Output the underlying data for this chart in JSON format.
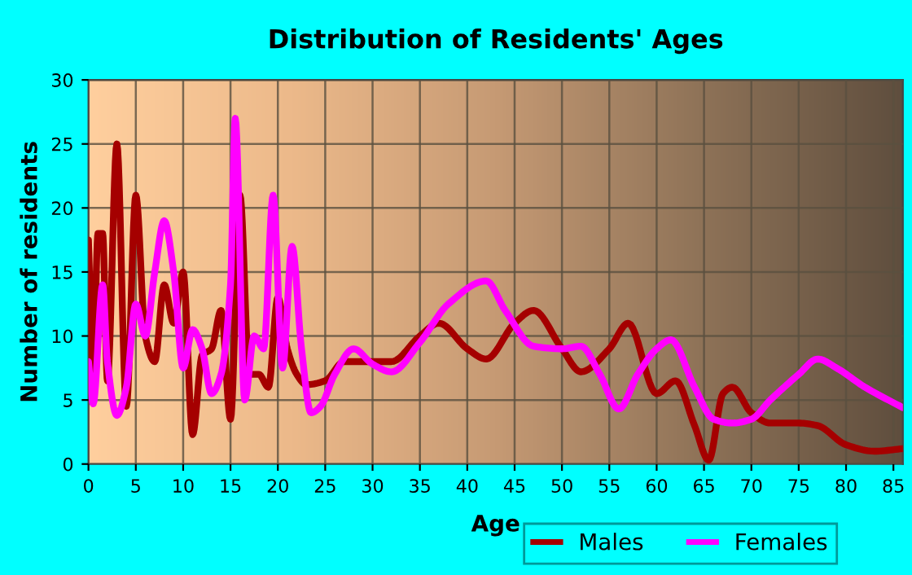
{
  "chart_data": {
    "type": "line",
    "title": "Distribution of Residents' Ages",
    "xlabel": "Age",
    "ylabel": "Number of residents",
    "xlim": [
      0,
      86
    ],
    "xticks": [
      0,
      5,
      10,
      15,
      20,
      25,
      30,
      35,
      40,
      45,
      50,
      55,
      60,
      65,
      70,
      75,
      80,
      85
    ],
    "ylim": [
      0,
      30
    ],
    "yticks": [
      0,
      5,
      10,
      15,
      20,
      25,
      30
    ],
    "grid": true,
    "legend": "bottom right",
    "marker": "none",
    "line_style": "solid",
    "series": [
      {
        "name": "Males",
        "color": "#a50000",
        "x": [
          0,
          0.5,
          1,
          1.5,
          2,
          3,
          4,
          5,
          6,
          7,
          8,
          9,
          10,
          11,
          12,
          13,
          14,
          15,
          16,
          17,
          18,
          19,
          20,
          21,
          22,
          23,
          25,
          27,
          30,
          32,
          35,
          37,
          40,
          42,
          45,
          47,
          50,
          52,
          55,
          57,
          60,
          62,
          64,
          65.5,
          67,
          68,
          70,
          72,
          75,
          77,
          80,
          83,
          86
        ],
        "values": [
          17.5,
          7,
          18,
          18,
          6.5,
          25,
          4.5,
          21,
          10,
          8,
          14,
          11,
          15,
          2.3,
          8.5,
          9,
          12,
          3.5,
          21,
          7,
          7,
          6,
          13,
          9,
          7,
          6.2,
          6.5,
          8,
          8,
          8,
          10,
          11,
          9,
          8.2,
          11,
          12,
          9,
          7.2,
          9,
          11,
          5.5,
          6.5,
          3,
          0.3,
          5.5,
          6,
          4,
          3.2,
          3.2,
          3,
          1.5,
          1,
          1.2
        ]
      },
      {
        "name": "Females",
        "color": "#ff00ff",
        "x": [
          0,
          0.5,
          1.5,
          2,
          3,
          4,
          5,
          6,
          7,
          8,
          9,
          10,
          11,
          12,
          13,
          14,
          15,
          15.5,
          16.5,
          17.5,
          18.5,
          19.5,
          20.5,
          21.5,
          22.5,
          23.5,
          24.5,
          26,
          28,
          30,
          32,
          35,
          38,
          42,
          44,
          47,
          50,
          52,
          54,
          56,
          58,
          60,
          61.5,
          64,
          66,
          68,
          70,
          72,
          75,
          77,
          79,
          82,
          86
        ],
        "values": [
          8,
          4.7,
          14,
          8,
          3.8,
          6,
          12.5,
          10,
          15,
          19,
          15,
          7.5,
          10.5,
          9,
          5.5,
          7,
          14,
          27,
          5,
          10,
          9,
          21,
          7.5,
          17,
          9,
          4,
          4.5,
          7,
          9,
          7.8,
          7.2,
          9.5,
          12.5,
          14.3,
          12,
          9.2,
          9,
          9.2,
          7,
          4.3,
          7,
          9,
          9.7,
          6,
          3.5,
          3.2,
          3.5,
          5,
          7,
          8.2,
          7.5,
          6,
          4.4
        ]
      }
    ]
  }
}
